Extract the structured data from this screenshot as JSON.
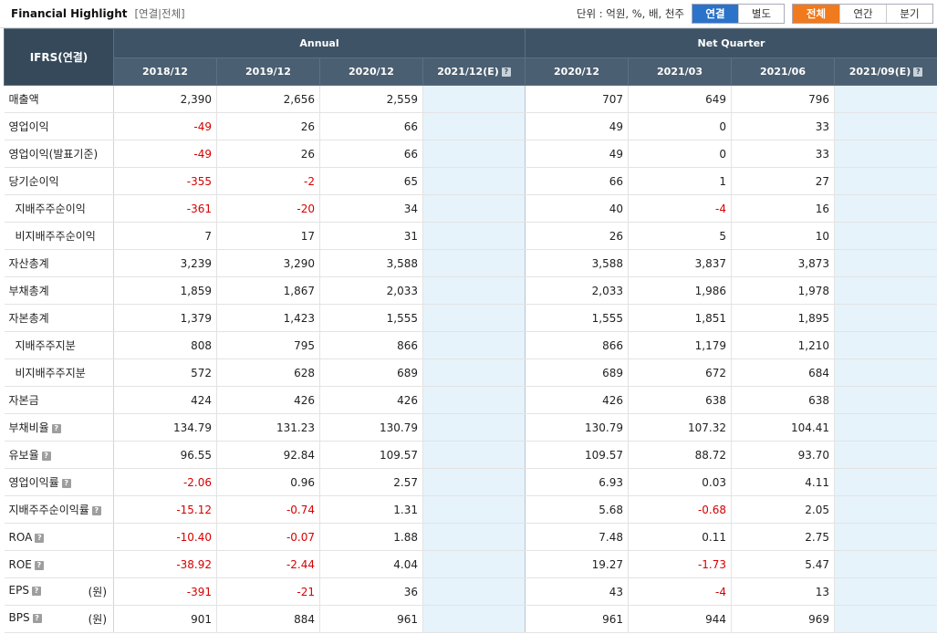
{
  "header": {
    "title": "Financial Highlight",
    "subtitle": "[연결|전체]",
    "unit": "단위 : 억원, %, 배, 천주"
  },
  "toggles": {
    "scope": [
      "연결",
      "별도"
    ],
    "period": [
      "전체",
      "연간",
      "분기"
    ]
  },
  "table": {
    "ifrs_label": "IFRS(연결)",
    "group_annual": "Annual",
    "group_quarter": "Net Quarter",
    "columns": [
      "2018/12",
      "2019/12",
      "2020/12",
      "2021/12(E)",
      "2020/12",
      "2021/03",
      "2021/06",
      "2021/09(E)"
    ],
    "rows": [
      {
        "label": "매출액",
        "indent": false,
        "help": false,
        "unit": "",
        "values": [
          "2,390",
          "2,656",
          "2,559",
          "",
          "707",
          "649",
          "796",
          ""
        ]
      },
      {
        "label": "영업이익",
        "indent": false,
        "help": false,
        "unit": "",
        "values": [
          "-49",
          "26",
          "66",
          "",
          "49",
          "0",
          "33",
          ""
        ]
      },
      {
        "label": "영업이익(발표기준)",
        "indent": false,
        "help": false,
        "unit": "",
        "values": [
          "-49",
          "26",
          "66",
          "",
          "49",
          "0",
          "33",
          ""
        ]
      },
      {
        "label": "당기순이익",
        "indent": false,
        "help": false,
        "unit": "",
        "values": [
          "-355",
          "-2",
          "65",
          "",
          "66",
          "1",
          "27",
          ""
        ]
      },
      {
        "label": "지배주주순이익",
        "indent": true,
        "help": false,
        "unit": "",
        "values": [
          "-361",
          "-20",
          "34",
          "",
          "40",
          "-4",
          "16",
          ""
        ]
      },
      {
        "label": "비지배주주순이익",
        "indent": true,
        "help": false,
        "unit": "",
        "values": [
          "7",
          "17",
          "31",
          "",
          "26",
          "5",
          "10",
          ""
        ]
      },
      {
        "label": "자산총계",
        "indent": false,
        "help": false,
        "unit": "",
        "values": [
          "3,239",
          "3,290",
          "3,588",
          "",
          "3,588",
          "3,837",
          "3,873",
          ""
        ]
      },
      {
        "label": "부채총계",
        "indent": false,
        "help": false,
        "unit": "",
        "values": [
          "1,859",
          "1,867",
          "2,033",
          "",
          "2,033",
          "1,986",
          "1,978",
          ""
        ]
      },
      {
        "label": "자본총계",
        "indent": false,
        "help": false,
        "unit": "",
        "values": [
          "1,379",
          "1,423",
          "1,555",
          "",
          "1,555",
          "1,851",
          "1,895",
          ""
        ]
      },
      {
        "label": "지배주주지분",
        "indent": true,
        "help": false,
        "unit": "",
        "values": [
          "808",
          "795",
          "866",
          "",
          "866",
          "1,179",
          "1,210",
          ""
        ]
      },
      {
        "label": "비지배주주지분",
        "indent": true,
        "help": false,
        "unit": "",
        "values": [
          "572",
          "628",
          "689",
          "",
          "689",
          "672",
          "684",
          ""
        ]
      },
      {
        "label": "자본금",
        "indent": false,
        "help": false,
        "unit": "",
        "values": [
          "424",
          "426",
          "426",
          "",
          "426",
          "638",
          "638",
          ""
        ]
      },
      {
        "label": "부채비율",
        "indent": false,
        "help": true,
        "unit": "",
        "values": [
          "134.79",
          "131.23",
          "130.79",
          "",
          "130.79",
          "107.32",
          "104.41",
          ""
        ]
      },
      {
        "label": "유보율",
        "indent": false,
        "help": true,
        "unit": "",
        "values": [
          "96.55",
          "92.84",
          "109.57",
          "",
          "109.57",
          "88.72",
          "93.70",
          ""
        ]
      },
      {
        "label": "영업이익률",
        "indent": false,
        "help": true,
        "unit": "",
        "values": [
          "-2.06",
          "0.96",
          "2.57",
          "",
          "6.93",
          "0.03",
          "4.11",
          ""
        ]
      },
      {
        "label": "지배주주순이익률",
        "indent": false,
        "help": true,
        "unit": "",
        "values": [
          "-15.12",
          "-0.74",
          "1.31",
          "",
          "5.68",
          "-0.68",
          "2.05",
          ""
        ]
      },
      {
        "label": "ROA",
        "indent": false,
        "help": true,
        "unit": "",
        "values": [
          "-10.40",
          "-0.07",
          "1.88",
          "",
          "7.48",
          "0.11",
          "2.75",
          ""
        ]
      },
      {
        "label": "ROE",
        "indent": false,
        "help": true,
        "unit": "",
        "values": [
          "-38.92",
          "-2.44",
          "4.04",
          "",
          "19.27",
          "-1.73",
          "5.47",
          ""
        ]
      },
      {
        "label": "EPS",
        "indent": false,
        "help": true,
        "unit": "(원)",
        "values": [
          "-391",
          "-21",
          "36",
          "",
          "43",
          "-4",
          "13",
          ""
        ]
      },
      {
        "label": "BPS",
        "indent": false,
        "help": true,
        "unit": "(원)",
        "values": [
          "901",
          "884",
          "961",
          "",
          "961",
          "944",
          "969",
          ""
        ]
      }
    ]
  },
  "colors": {
    "header_bg": "#3e5366",
    "estimate_bg": "#e6f3fb",
    "negative": "#d60000",
    "active_blue": "#2b73c8",
    "active_orange": "#f07a1c"
  }
}
